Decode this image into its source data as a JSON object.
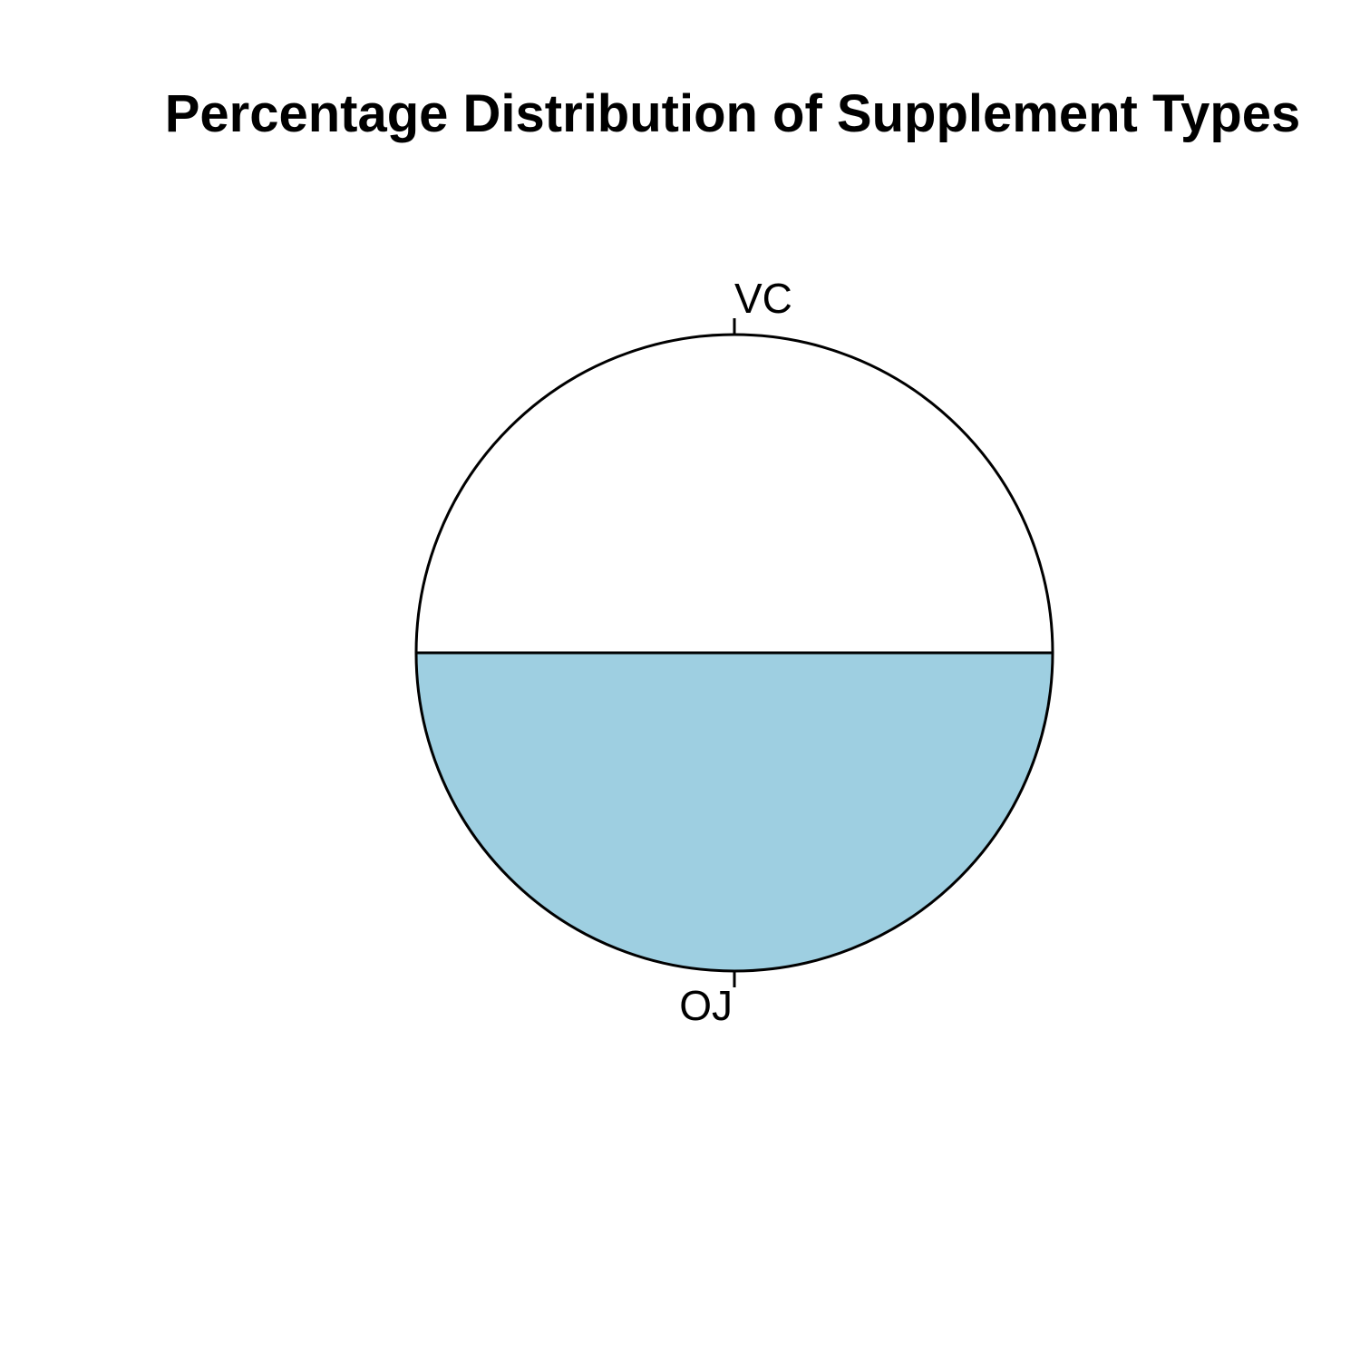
{
  "chart_data": {
    "type": "pie",
    "title": "Percentage Distribution of Supplement Types",
    "slices": [
      {
        "label": "OJ",
        "value": 50,
        "color": "#9ECFE1"
      },
      {
        "label": "VC",
        "value": 50,
        "color": "#FFFFFF"
      }
    ]
  }
}
